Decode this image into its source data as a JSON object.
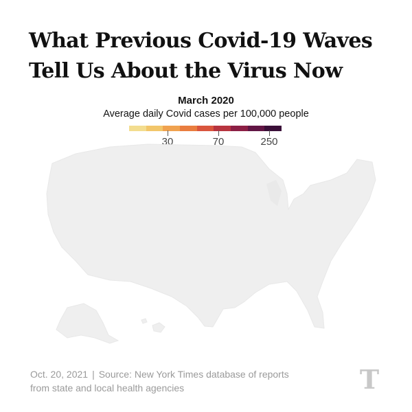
{
  "headline": {
    "line1": "What Previous Covid-19 Waves",
    "line2": "Tell Us About the Virus Now"
  },
  "legend": {
    "period": "March 2020",
    "description": "Average daily Covid cases per 100,000 people",
    "colors": [
      "#f3dd8f",
      "#f2c66a",
      "#f0a24f",
      "#e97d3f",
      "#d9553d",
      "#b7343f",
      "#8c1f45",
      "#611544",
      "#3a0f38"
    ],
    "ticks": [
      "30",
      "70",
      "250"
    ]
  },
  "map": {
    "region": "United States",
    "base_color": "#efefef"
  },
  "footer": {
    "date": "Oct. 20, 2021",
    "separator": "|",
    "source_line1": "Source: New York Times database of reports",
    "source_line2": "from state and local health agencies"
  },
  "logo": {
    "text": "T",
    "icon": "nyt-logo-icon"
  }
}
